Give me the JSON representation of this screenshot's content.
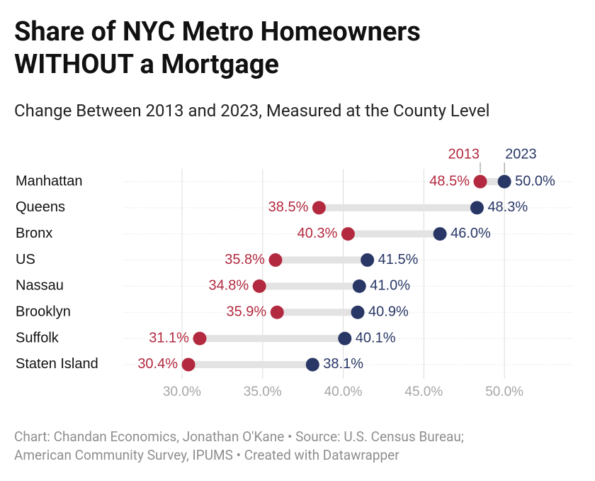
{
  "chart_data": {
    "type": "dumbbell",
    "title": "Share of NYC Metro Homeowners WITHOUT a Mortgage",
    "subtitle": "Change Between 2013 and 2023, Measured at the County Level",
    "source": "Chart: Chandan Economics, Jonathan O'Kane • Source: U.S. Census Bureau; American Community Survey, IPUMS • Created with Datawrapper",
    "categories": [
      "Manhattan",
      "Queens",
      "Bronx",
      "US",
      "Nassau",
      "Brooklyn",
      "Suffolk",
      "Staten Island"
    ],
    "series": [
      {
        "name": "2013",
        "color": "#b3293f",
        "values": [
          48.5,
          38.5,
          40.3,
          35.8,
          34.8,
          35.9,
          31.1,
          30.4
        ],
        "value_labels": [
          "48.5%",
          "38.5%",
          "40.3%",
          "35.8%",
          "34.8%",
          "35.9%",
          "31.1%",
          "30.4%"
        ]
      },
      {
        "name": "2023",
        "color": "#293766",
        "values": [
          50.0,
          48.3,
          46.0,
          41.5,
          41.0,
          40.9,
          40.1,
          38.1
        ],
        "value_labels": [
          "50.0%",
          "48.3%",
          "46.0%",
          "41.5%",
          "41.0%",
          "40.9%",
          "40.1%",
          "38.1%"
        ]
      }
    ],
    "xlim": [
      26.4,
      54.3
    ],
    "xticks": [
      {
        "value": 30,
        "label": "30.0%"
      },
      {
        "value": 35,
        "label": "35.0%"
      },
      {
        "value": 40,
        "label": "40.0%"
      },
      {
        "value": 45,
        "label": "45.0%"
      },
      {
        "value": 50,
        "label": "50.0%"
      }
    ],
    "grid": true
  }
}
